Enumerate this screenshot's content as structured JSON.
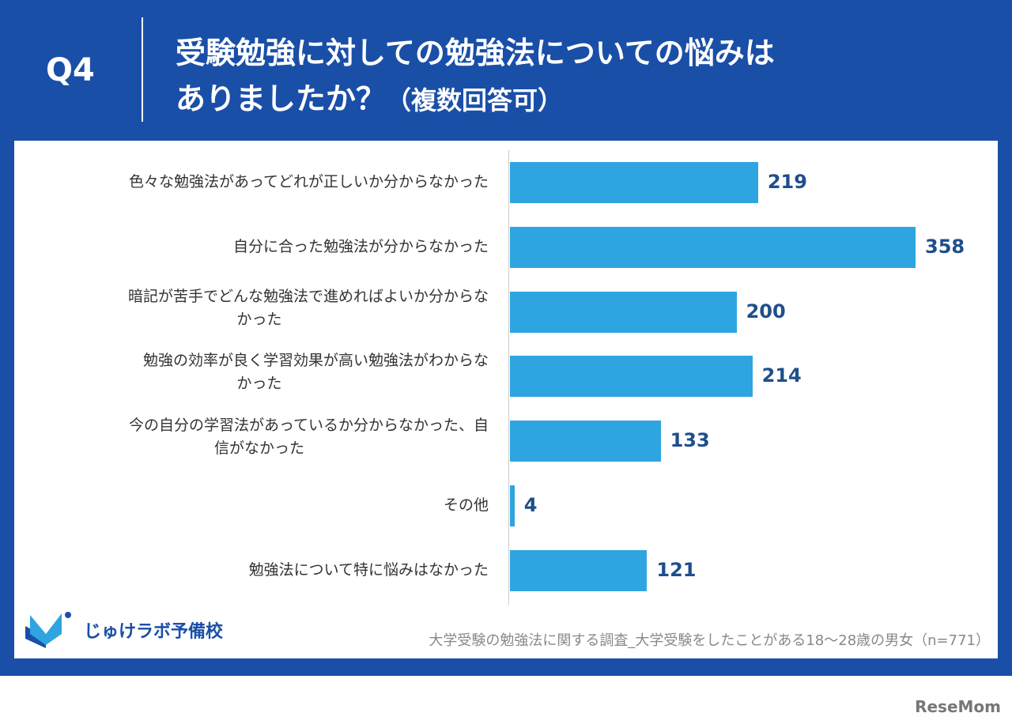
{
  "header": {
    "q": "Q4",
    "line1": "受験勉強に対しての勉強法についての悩みは",
    "line2": "ありましたか？",
    "line2_note": "（複数回答可）"
  },
  "chart_data": {
    "type": "bar",
    "orientation": "horizontal",
    "title": "受験勉強に対しての勉強法についての悩みはありましたか？（複数回答可）",
    "categories": [
      "色々な勉強法があってどれが正しいか分からなかった",
      "自分に合った勉強法が分からなかった",
      "暗記が苦手でどんな勉強法で進めればよいか分からなかった",
      "勉強の効率が良く学習効果が高い勉強法がわからなかった",
      "今の自分の学習法があっているか分からなかった、自信がなかった",
      "その他",
      "勉強法について特に悩みはなかった"
    ],
    "values": [
      219,
      358,
      200,
      214,
      133,
      4,
      121
    ],
    "xlim": [
      0,
      358
    ],
    "grid": false,
    "color": "#2ea5e0"
  },
  "footer": {
    "logo": "じゅけラボ予備校",
    "source": "大学受験の勉強法に関する調査_大学受験をしたことがある18～28歳の男女（n=771）",
    "watermark": "ReseMom"
  }
}
